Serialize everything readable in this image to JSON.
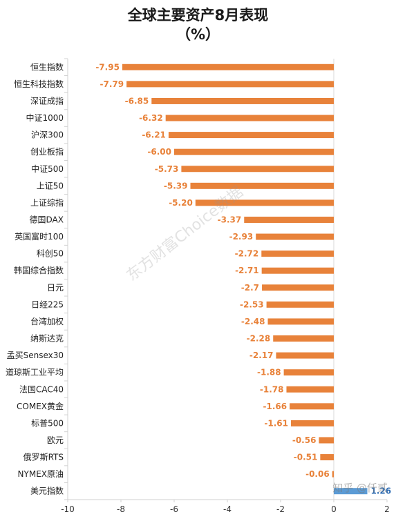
{
  "chart_data": {
    "type": "bar",
    "orientation": "horizontal",
    "title_lines": [
      "全球主要资产8月表现",
      "（%）"
    ],
    "categories": [
      "恒生指数",
      "恒生科技指数",
      "深证成指",
      "中证1000",
      "沪深300",
      "创业板指",
      "中证500",
      "上证50",
      "上证综指",
      "德国DAX",
      "英国富时100",
      "科创50",
      "韩国综合指数",
      "日元",
      "日经225",
      "台湾加权",
      "纳斯达克",
      "孟买Sensex30",
      "道琼斯工业平均",
      "法国CAC40",
      "COMEX黄金",
      "标普500",
      "欧元",
      "俄罗斯RTS",
      "NYMEX原油",
      "美元指数"
    ],
    "values": [
      -7.95,
      -7.79,
      -6.85,
      -6.32,
      -6.21,
      -6.0,
      -5.73,
      -5.39,
      -5.2,
      -3.37,
      -2.93,
      -2.72,
      -2.71,
      -2.7,
      -2.53,
      -2.48,
      -2.28,
      -2.17,
      -1.88,
      -1.78,
      -1.66,
      -1.61,
      -0.56,
      -0.51,
      -0.06,
      1.26
    ],
    "value_labels": [
      "-7.95",
      "-7.79",
      "-6.85",
      "-6.32",
      "-6.21",
      "-6.00",
      "-5.73",
      "-5.39",
      "-5.20",
      "-3.37",
      "-2.93",
      "-2.72",
      "-2.71",
      "-2.7",
      "-2.53",
      "-2.48",
      "-2.28",
      "-2.17",
      "-1.88",
      "-1.78",
      "-1.66",
      "-1.61",
      "-0.56",
      "-0.51",
      "-0.06",
      "1.26"
    ],
    "xlim": [
      -10,
      2
    ],
    "xticks": [
      -10,
      -8,
      -6,
      -4,
      -2,
      0,
      2
    ],
    "grid": false,
    "colors": {
      "negative": "#E8823A",
      "positive": "#5B9BD5",
      "negative_label": "#E8823A",
      "positive_label": "#2E6DB4"
    }
  },
  "watermark": "东方财富Choice数据",
  "credit": "知乎 @仟贰"
}
